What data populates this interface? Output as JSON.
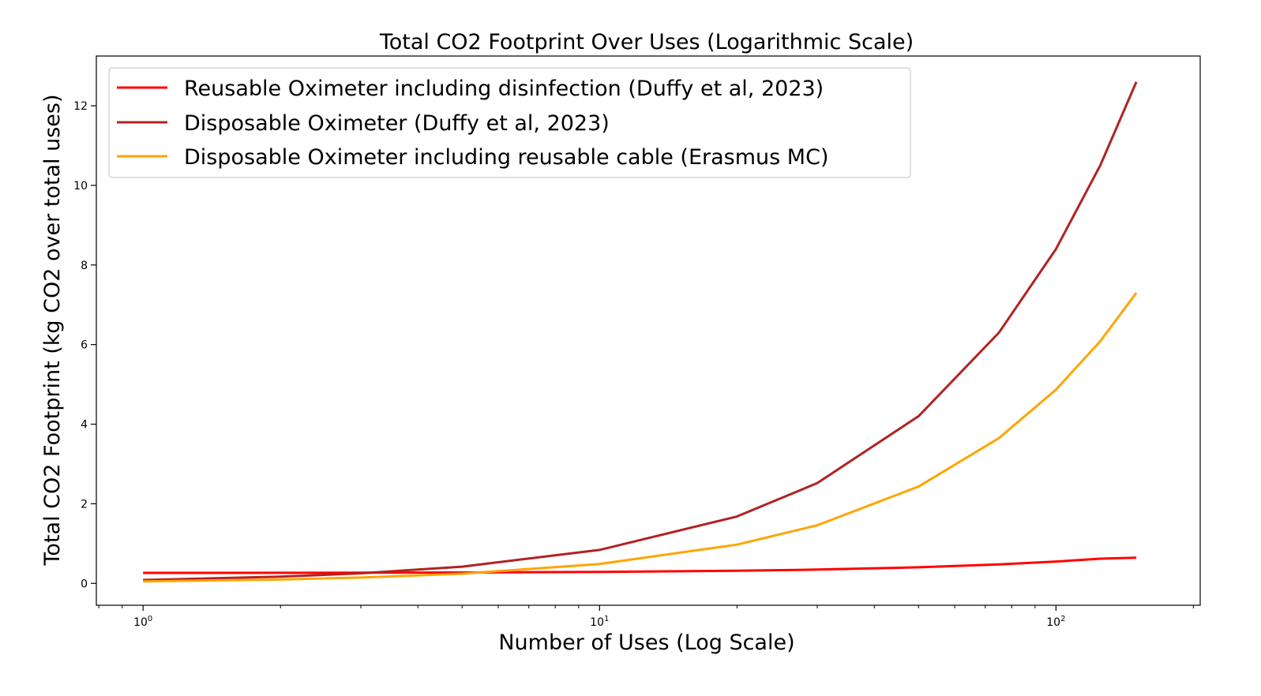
{
  "chart_data": {
    "type": "line",
    "title": "Total CO2 Footprint Over Uses (Logarithmic Scale)",
    "xlabel": "Number of Uses (Log Scale)",
    "ylabel": "Total CO2 Footprint (kg CO2 over total uses)",
    "xscale": "log",
    "xlim": [
      0.79,
      207
    ],
    "ylim": [
      -0.55,
      13.25
    ],
    "yticks": [
      0,
      2,
      4,
      6,
      8,
      10,
      12
    ],
    "xticks": [
      {
        "value": 1,
        "base": "10",
        "exp": "0"
      },
      {
        "value": 10,
        "base": "10",
        "exp": "1"
      },
      {
        "value": 100,
        "base": "10",
        "exp": "2"
      }
    ],
    "grid": false,
    "legend_position": "top-left",
    "series": [
      {
        "name": "Reusable Oximeter including disinfection (Duffy et al, 2023)",
        "color": "#ff0000",
        "x": [
          1,
          2,
          3,
          5,
          10,
          20,
          30,
          50,
          75,
          100,
          125,
          150
        ],
        "y": [
          0.262,
          0.265,
          0.268,
          0.274,
          0.288,
          0.317,
          0.346,
          0.404,
          0.476,
          0.549,
          0.62,
          0.645
        ]
      },
      {
        "name": "Disposable Oximeter (Duffy et al, 2023)",
        "color": "#b22222",
        "x": [
          1,
          2,
          3,
          5,
          10,
          20,
          30,
          50,
          75,
          100,
          125,
          150
        ],
        "y": [
          0.084,
          0.168,
          0.252,
          0.42,
          0.84,
          1.68,
          2.52,
          4.2,
          6.3,
          8.4,
          10.5,
          12.6
        ]
      },
      {
        "name": "Disposable Oximeter including reusable cable (Erasmus MC)",
        "color": "#ffa500",
        "x": [
          1,
          2,
          3,
          5,
          10,
          20,
          30,
          50,
          75,
          100,
          125,
          150
        ],
        "y": [
          0.049,
          0.097,
          0.146,
          0.243,
          0.487,
          0.973,
          1.46,
          2.433,
          3.65,
          4.867,
          6.083,
          7.3
        ]
      }
    ]
  }
}
